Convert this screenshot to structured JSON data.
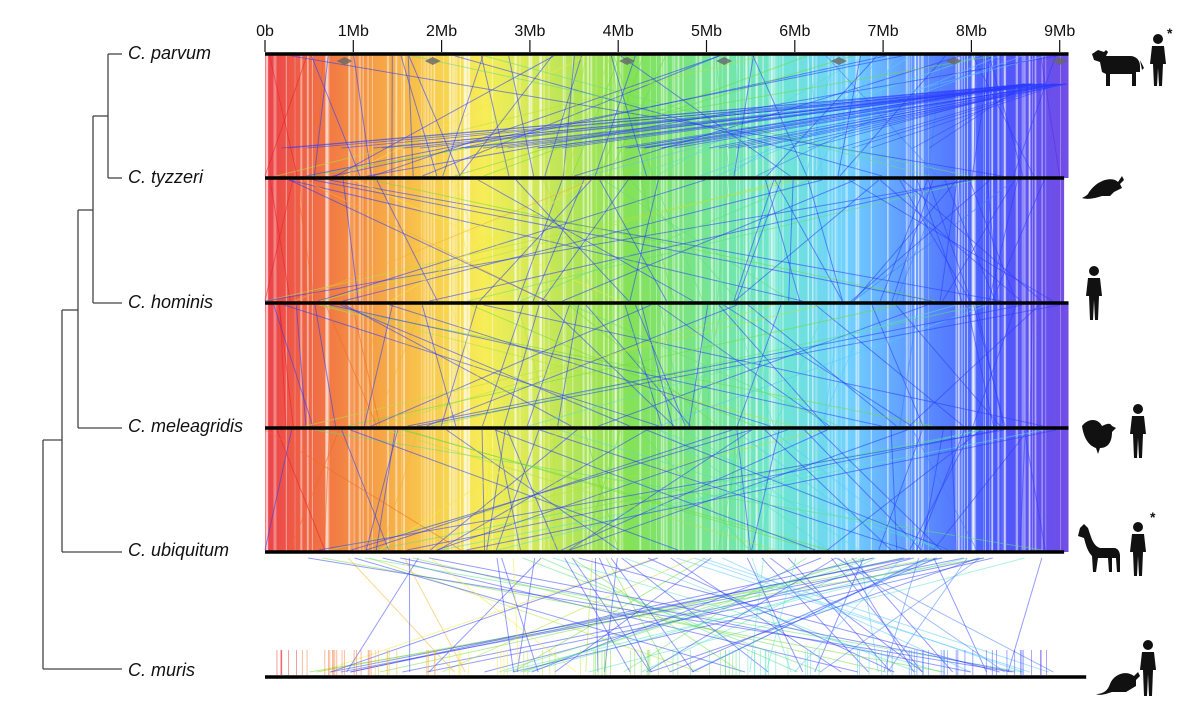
{
  "figure": {
    "axis_tick_labels": [
      "0b",
      "1Mb",
      "2Mb",
      "3Mb",
      "4Mb",
      "5Mb",
      "6Mb",
      "7Mb",
      "8Mb",
      "9Mb"
    ],
    "axis_max_mb": 9
  },
  "species": [
    {
      "name": "C. parvum",
      "genome_mb": 9.1,
      "hosts": [
        "cow-icon",
        "human-icon"
      ],
      "zoonotic_mark": "*"
    },
    {
      "name": "C. tyzzeri",
      "genome_mb": 9.05,
      "hosts": [
        "mouse-icon"
      ],
      "zoonotic_mark": ""
    },
    {
      "name": "C. hominis",
      "genome_mb": 9.1,
      "hosts": [
        "human-icon"
      ],
      "zoonotic_mark": ""
    },
    {
      "name": "C. meleagridis",
      "genome_mb": 9.1,
      "hosts": [
        "turkey-icon",
        "human-icon"
      ],
      "zoonotic_mark": ""
    },
    {
      "name": "C. ubiquitum",
      "genome_mb": 9.05,
      "hosts": [
        "deer-icon",
        "human-icon"
      ],
      "zoonotic_mark": "*"
    },
    {
      "name": "C. muris",
      "genome_mb": 9.3,
      "hosts": [
        "rat-icon",
        "human-icon"
      ],
      "zoonotic_mark": ""
    }
  ],
  "colors": {
    "gradient": [
      "#e8202a",
      "#f06a22",
      "#f7b22a",
      "#f5ea3a",
      "#b7e23a",
      "#6fdc3a",
      "#5fe07a",
      "#55e2c8",
      "#58c8ff",
      "#3f7cff",
      "#2a3cff",
      "#5a2ee0"
    ],
    "chromosome_bar": "#000000",
    "tree": "#444444",
    "silhouette": "#111111"
  }
}
